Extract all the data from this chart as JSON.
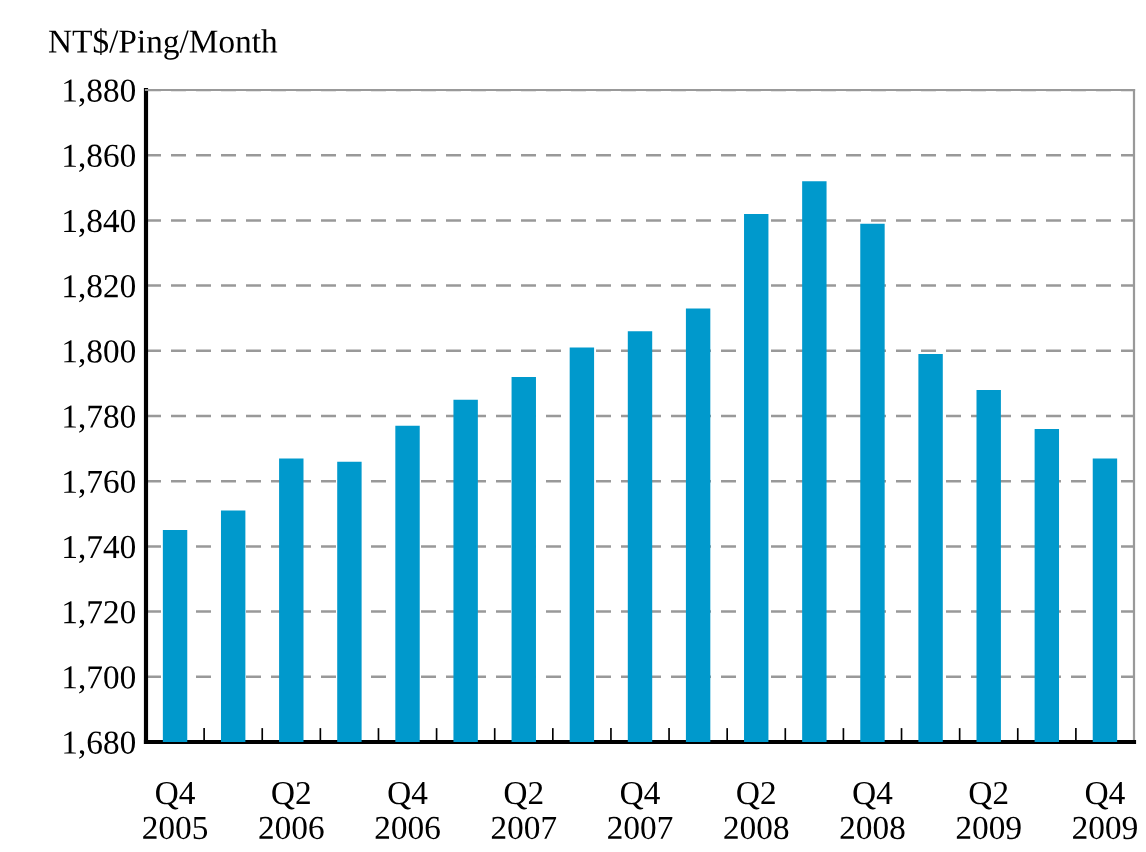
{
  "chart_data": {
    "type": "bar",
    "ylabel": "NT$/Ping/Month",
    "categories": [
      "Q4\n2005",
      null,
      "Q2\n2006",
      null,
      "Q4\n2006",
      null,
      "Q2\n2007",
      null,
      "Q4\n2007",
      null,
      "Q2\n2008",
      null,
      "Q4\n2008",
      null,
      "Q2\n2009",
      null,
      "Q4\n2009"
    ],
    "values": [
      1745,
      1751,
      1767,
      1766,
      1777,
      1785,
      1792,
      1801,
      1806,
      1813,
      1842,
      1852,
      1839,
      1799,
      1788,
      1776,
      1767
    ],
    "color": "#0099cc",
    "ylim": [
      1680,
      1880
    ],
    "yticks": [
      {
        "value": 1680,
        "label": "1,680"
      },
      {
        "value": 1700,
        "label": "1,700"
      },
      {
        "value": 1720,
        "label": "1,720"
      },
      {
        "value": 1740,
        "label": "1,740"
      },
      {
        "value": 1760,
        "label": "1,760"
      },
      {
        "value": 1780,
        "label": "1,780"
      },
      {
        "value": 1800,
        "label": "1,800"
      },
      {
        "value": 1820,
        "label": "1,820"
      },
      {
        "value": 1840,
        "label": "1,840"
      },
      {
        "value": 1860,
        "label": "1,860"
      },
      {
        "value": 1880,
        "label": "1,880"
      }
    ],
    "grid": "y"
  }
}
